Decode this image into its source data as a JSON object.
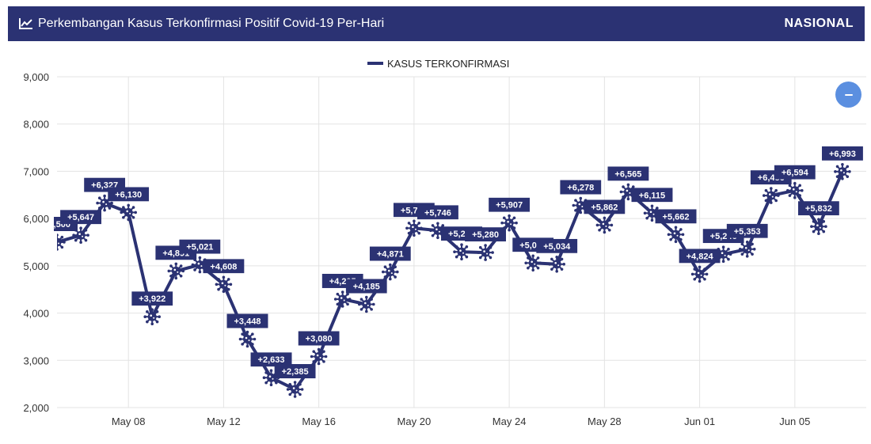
{
  "header": {
    "title": "Perkembangan Kasus Terkonfirmasi Positif Covid-19 Per-Hari",
    "badge": "NASIONAL",
    "icon": "line-chart-icon"
  },
  "zoom_button": {
    "icon": "minus-icon"
  },
  "colors": {
    "primary": "#2b3273",
    "zoom": "#5b8fe0",
    "grid": "#e3e3e3"
  },
  "chart_data": {
    "type": "line",
    "title": "",
    "xlabel": "",
    "ylabel": "",
    "legend": {
      "placement": "top-center"
    },
    "grid": true,
    "ylim": [
      2000,
      9000
    ],
    "yticks": [
      "2,000",
      "3,000",
      "4,000",
      "5,000",
      "6,000",
      "7,000",
      "8,000",
      "9,000"
    ],
    "ytick_values": [
      2000,
      3000,
      4000,
      5000,
      6000,
      7000,
      8000,
      9000
    ],
    "xrange": [
      "2021-05-05",
      "2021-06-08"
    ],
    "xticks": [
      {
        "date": "2021-05-08",
        "label": "May 08"
      },
      {
        "date": "2021-05-12",
        "label": "May 12"
      },
      {
        "date": "2021-05-16",
        "label": "May 16"
      },
      {
        "date": "2021-05-20",
        "label": "May 20"
      },
      {
        "date": "2021-05-24",
        "label": "May 24"
      },
      {
        "date": "2021-05-28",
        "label": "May 28"
      },
      {
        "date": "2021-06-01",
        "label": "Jun 01"
      },
      {
        "date": "2021-06-05",
        "label": "Jun 05"
      }
    ],
    "series": [
      {
        "name": "KASUS TERKONFIRMASI",
        "color": "#2b3273",
        "points": [
          {
            "date": "2021-05-05",
            "value": 5500,
            "label": "+5,500"
          },
          {
            "date": "2021-05-06",
            "value": 5647,
            "label": "+5,647"
          },
          {
            "date": "2021-05-07",
            "value": 6327,
            "label": "+6,327"
          },
          {
            "date": "2021-05-08",
            "value": 6130,
            "label": "+6,130"
          },
          {
            "date": "2021-05-09",
            "value": 3922,
            "label": "+3,922"
          },
          {
            "date": "2021-05-10",
            "value": 4891,
            "label": "+4,891"
          },
          {
            "date": "2021-05-11",
            "value": 5021,
            "label": "+5,021"
          },
          {
            "date": "2021-05-12",
            "value": 4608,
            "label": "+4,608"
          },
          {
            "date": "2021-05-13",
            "value": 3448,
            "label": "+3,448"
          },
          {
            "date": "2021-05-14",
            "value": 2633,
            "label": "+2,633"
          },
          {
            "date": "2021-05-15",
            "value": 2385,
            "label": "+2,385"
          },
          {
            "date": "2021-05-16",
            "value": 3080,
            "label": "+3,080"
          },
          {
            "date": "2021-05-17",
            "value": 4295,
            "label": "+4,295"
          },
          {
            "date": "2021-05-18",
            "value": 4185,
            "label": "+4,185"
          },
          {
            "date": "2021-05-19",
            "value": 4871,
            "label": "+4,871"
          },
          {
            "date": "2021-05-20",
            "value": 5797,
            "label": "+5,797"
          },
          {
            "date": "2021-05-21",
            "value": 5746,
            "label": "+5,746"
          },
          {
            "date": "2021-05-22",
            "value": 5296,
            "label": "+5,296"
          },
          {
            "date": "2021-05-23",
            "value": 5280,
            "label": "+5,280"
          },
          {
            "date": "2021-05-24",
            "value": 5907,
            "label": "+5,907"
          },
          {
            "date": "2021-05-25",
            "value": 5060,
            "label": "+5,060"
          },
          {
            "date": "2021-05-26",
            "value": 5034,
            "label": "+5,034"
          },
          {
            "date": "2021-05-27",
            "value": 6278,
            "label": "+6,278"
          },
          {
            "date": "2021-05-28",
            "value": 5862,
            "label": "+5,862"
          },
          {
            "date": "2021-05-29",
            "value": 6565,
            "label": "+6,565"
          },
          {
            "date": "2021-05-30",
            "value": 6115,
            "label": "+6,115"
          },
          {
            "date": "2021-05-31",
            "value": 5662,
            "label": "+5,662"
          },
          {
            "date": "2021-06-01",
            "value": 4824,
            "label": "+4,824"
          },
          {
            "date": "2021-06-02",
            "value": 5246,
            "label": "+5,246"
          },
          {
            "date": "2021-06-03",
            "value": 5353,
            "label": "+5,353"
          },
          {
            "date": "2021-06-04",
            "value": 6486,
            "label": "+6,486"
          },
          {
            "date": "2021-06-05",
            "value": 6594,
            "label": "+6,594"
          },
          {
            "date": "2021-06-06",
            "value": 5832,
            "label": "+5,832"
          },
          {
            "date": "2021-06-07",
            "value": 6993,
            "label": "+6,993"
          }
        ]
      }
    ]
  }
}
